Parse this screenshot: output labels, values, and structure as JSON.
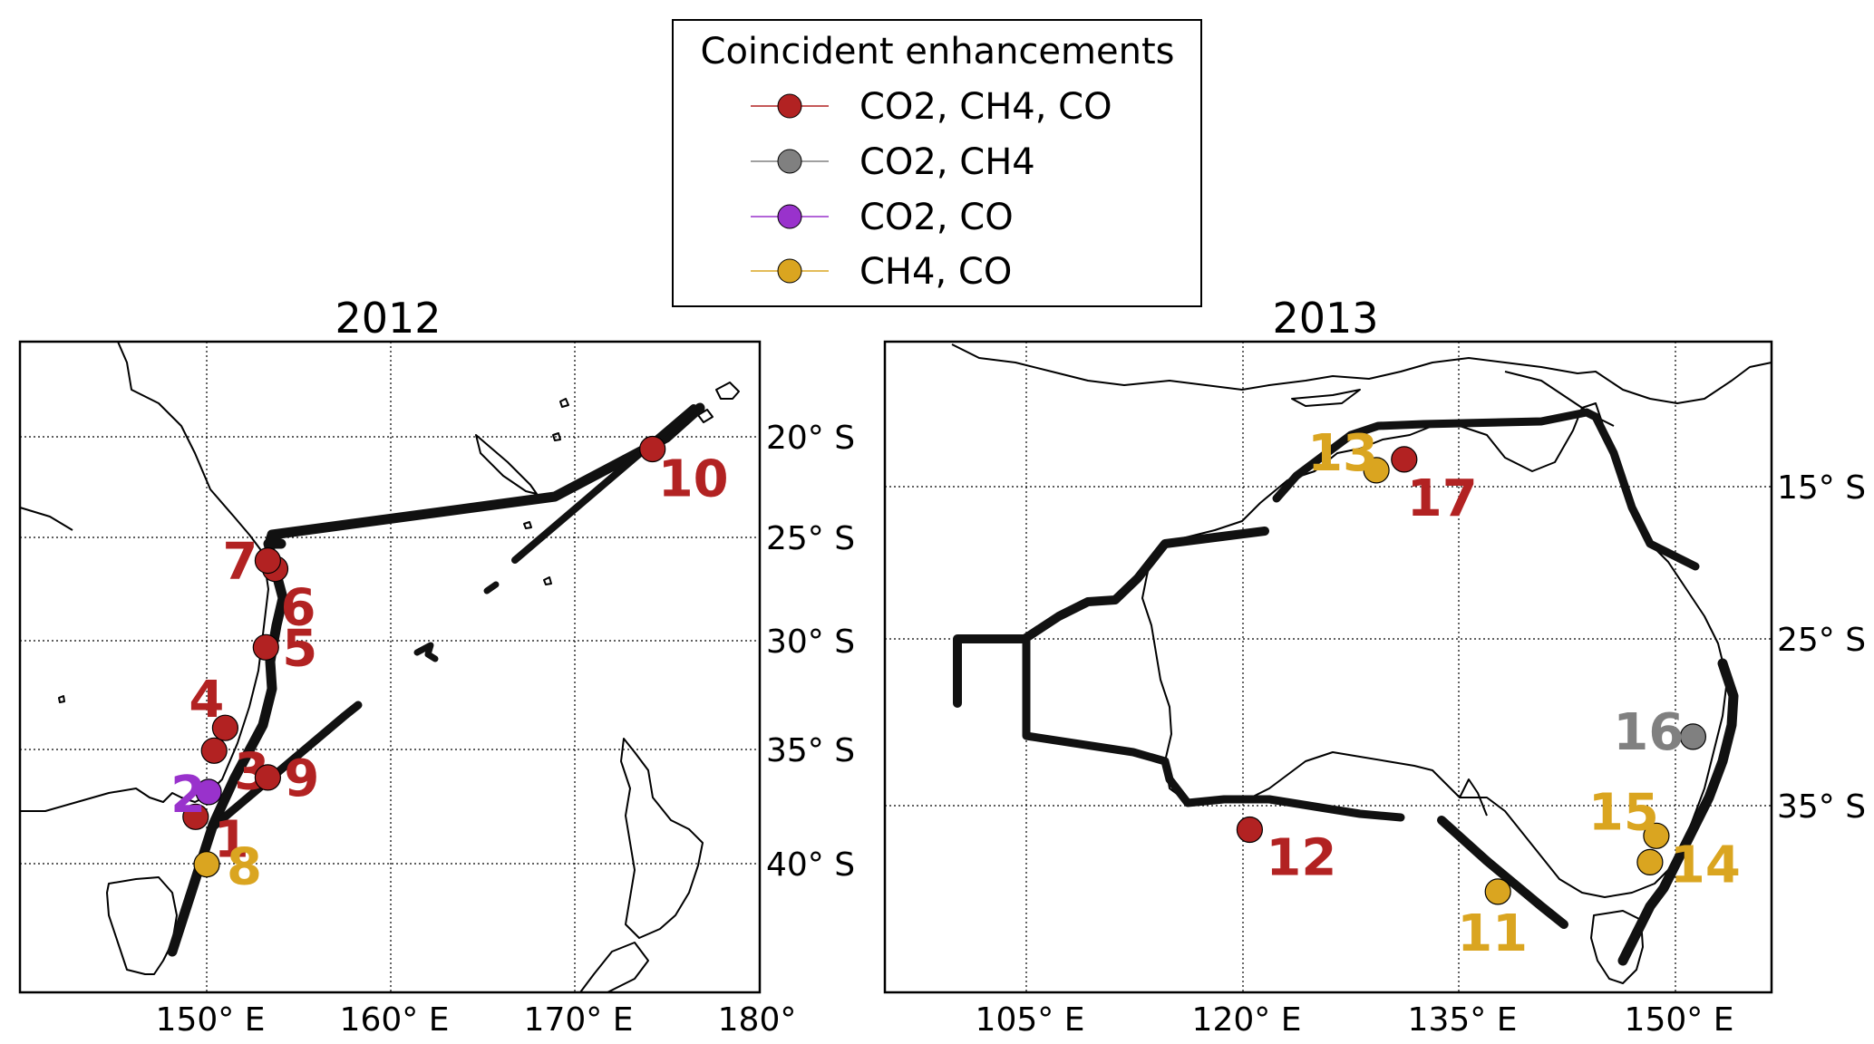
{
  "legend": {
    "title": "Coincident enhancements",
    "entries": [
      {
        "label": "CO2, CH4, CO",
        "color": "#b22222"
      },
      {
        "label": "CO2, CH4",
        "color": "#808080"
      },
      {
        "label": "CO2, CO",
        "color": "#9932cc"
      },
      {
        "label": "CH4, CO",
        "color": "#daa520"
      }
    ]
  },
  "colors": {
    "co2_ch4_co": "#b22222",
    "co2_ch4": "#808080",
    "co2_co": "#9932cc",
    "ch4_co": "#daa520",
    "track": "#000000",
    "coast": "#000000"
  },
  "maps": [
    {
      "title": "2012",
      "lon_range": [
        140,
        180
      ],
      "lat_range": [
        -47,
        -15.5
      ],
      "lon_ticks": [
        "150° E",
        "160° E",
        "170° E",
        "180°"
      ],
      "lat_ticks": [
        "20° S",
        "25° S",
        "30° S",
        "35° S",
        "40° S"
      ],
      "events": [
        {
          "label": "1",
          "type": "co2_ch4_co",
          "lon": 149.5,
          "lat": -38.5
        },
        {
          "label": "2",
          "type": "co2_co",
          "lon": 150.2,
          "lat": -37.3
        },
        {
          "label": "3",
          "type": "co2_ch4_co",
          "lon": 150.5,
          "lat": -35.3
        },
        {
          "label": "4",
          "type": "co2_ch4_co",
          "lon": 151.1,
          "lat": -34.2
        },
        {
          "label": "5",
          "type": "co2_ch4_co",
          "lon": 153.3,
          "lat": -30.3
        },
        {
          "label": "6",
          "type": "co2_ch4_co",
          "lon": 153.8,
          "lat": -26.5
        },
        {
          "label": "7",
          "type": "co2_ch4_co",
          "lon": 153.4,
          "lat": -26.1
        },
        {
          "label": "8",
          "type": "ch4_co",
          "lon": 150.1,
          "lat": -40.8
        },
        {
          "label": "9",
          "type": "co2_ch4_co",
          "lon": 153.4,
          "lat": -36.6
        },
        {
          "label": "10",
          "type": "co2_ch4_co",
          "lon": 174.2,
          "lat": -20.7
        }
      ]
    },
    {
      "title": "2013",
      "lon_range": [
        90,
        160
      ],
      "lat_range": [
        -45.5,
        -3.5
      ],
      "lon_ticks": [
        "105° E",
        "120° E",
        "135° E",
        "150° E"
      ],
      "lat_ticks": [
        "15° S",
        "25° S",
        "35° S"
      ],
      "events": [
        {
          "label": "11",
          "type": "ch4_co",
          "lon": 138.4,
          "lat": -39.0
        },
        {
          "label": "12",
          "type": "co2_ch4_co",
          "lon": 118.8,
          "lat": -35.0
        },
        {
          "label": "13",
          "type": "ch4_co",
          "lon": 128.8,
          "lat": -11.8
        },
        {
          "label": "14",
          "type": "ch4_co",
          "lon": 150.4,
          "lat": -37.1
        },
        {
          "label": "15",
          "type": "ch4_co",
          "lon": 150.9,
          "lat": -35.4
        },
        {
          "label": "16",
          "type": "co2_ch4",
          "lon": 153.8,
          "lat": -29.0
        },
        {
          "label": "17",
          "type": "co2_ch4_co",
          "lon": 131.0,
          "lat": -11.1
        }
      ]
    }
  ]
}
